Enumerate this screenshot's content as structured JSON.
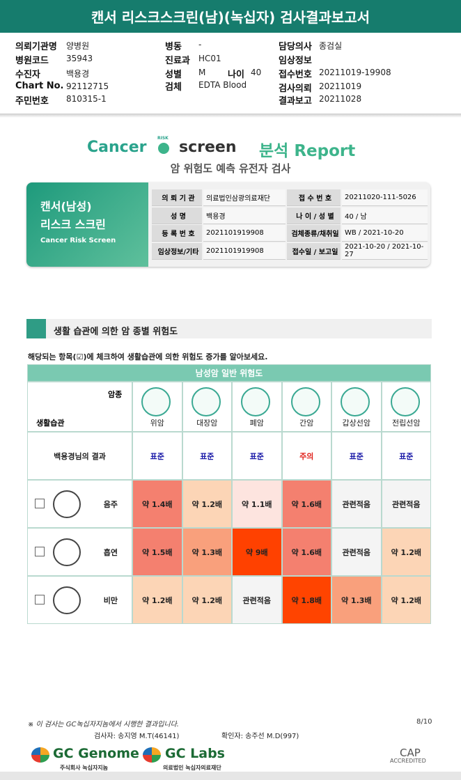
{
  "header": {
    "title": "캔서 리스크스크린(남)(녹십자) 검사결과보고서"
  },
  "info": {
    "columns": [
      [
        {
          "label": "의뢰기관명",
          "value": "양병원"
        },
        {
          "label": "병원코드",
          "value": "35943"
        },
        {
          "label": "수진자",
          "value": "백용경"
        },
        {
          "label": "Chart No.",
          "value": "92112715"
        },
        {
          "label": "주민번호",
          "value": "810315-1"
        }
      ],
      [
        {
          "label": "병동",
          "value": "-"
        },
        {
          "label": "진료과",
          "value": "HC01"
        },
        {
          "label": "성별",
          "value": "M"
        },
        {
          "label": "검체",
          "value": "EDTA Blood"
        }
      ],
      [
        {
          "label": "담당의사",
          "value": "종검실"
        },
        {
          "label": "임상정보"
        },
        {
          "label": "접수번호",
          "value": "20211019-19908"
        },
        {
          "label": "검사의뢰",
          "value": "20211019"
        },
        {
          "label": "결과보고",
          "value": "20211028"
        }
      ]
    ],
    "age": {
      "label": "나이",
      "value": "40"
    }
  },
  "logo": {
    "cancer": "Cancer",
    "risk": "RISK",
    "screen": "screen",
    "report": "분석 Report",
    "subtitle": "암 위험도 예측 유전자 검사"
  },
  "card": {
    "title1": "캔서(남성)",
    "title2": "리스크 스크린",
    "english": "Cancer Risk Screen",
    "rows": [
      [
        "의 뢰 기 관",
        "의료법인삼광의료재단",
        "접 수 번 호",
        "20211020-111-5026"
      ],
      [
        "성 명",
        "백용경",
        "나 이 / 성 별",
        "40 / 남"
      ],
      [
        "등 록 번 호",
        "2021101919908",
        "검체종류/채취일",
        "WB / 2021-10-20"
      ],
      [
        "임상정보/기타",
        "2021101919908",
        "접수일 / 보고일",
        "2021-10-20 / 2021-10-27"
      ]
    ]
  },
  "section": {
    "title": "생활 습관에 의한 암 종별 위험도",
    "instruction": "해당되는 항목(☑)에 체크하여 생활습관에 의한 위험도 증가를 알아보세요."
  },
  "risk_table": {
    "title": "남성암 일반 위험도",
    "corner_top": "암종",
    "corner_bottom": "생활습관",
    "cancers": [
      "위암",
      "대장암",
      "폐암",
      "간암",
      "갑상선암",
      "전립선암"
    ],
    "result_label": "백용경님의 결과",
    "results": [
      {
        "text": "표준",
        "color": "#1a1aa8"
      },
      {
        "text": "표준",
        "color": "#1a1aa8"
      },
      {
        "text": "표준",
        "color": "#1a1aa8"
      },
      {
        "text": "주의",
        "color": "#e0201a"
      },
      {
        "text": "표준",
        "color": "#1a1aa8"
      },
      {
        "text": "표준",
        "color": "#1a1aa8"
      }
    ],
    "habits": [
      {
        "name": "음주",
        "cells": [
          {
            "text": "약 1.4배",
            "color": "#f4806f"
          },
          {
            "text": "약 1.2배",
            "color": "#fcd5b6"
          },
          {
            "text": "약 1.1배",
            "color": "#fde4df"
          },
          {
            "text": "약 1.6배",
            "color": "#f4806f"
          },
          {
            "text": "관련적음",
            "color": "#f4f4f4"
          },
          {
            "text": "관련적음",
            "color": "#f4f4f4"
          }
        ]
      },
      {
        "name": "흡연",
        "cells": [
          {
            "text": "약 1.5배",
            "color": "#f4806f"
          },
          {
            "text": "약 1.3배",
            "color": "#f9a07c"
          },
          {
            "text": "약 9배",
            "color": "#ff4100"
          },
          {
            "text": "약 1.6배",
            "color": "#f4806f"
          },
          {
            "text": "관련적음",
            "color": "#f4f4f4"
          },
          {
            "text": "약 1.2배",
            "color": "#fcd5b6"
          }
        ]
      },
      {
        "name": "비만",
        "cells": [
          {
            "text": "약 1.2배",
            "color": "#fcd5b6"
          },
          {
            "text": "약 1.2배",
            "color": "#fcd5b6"
          },
          {
            "text": "관련적음",
            "color": "#f4f4f4"
          },
          {
            "text": "약 1.8배",
            "color": "#ff4400"
          },
          {
            "text": "약 1.3배",
            "color": "#f9a07c"
          },
          {
            "text": "약 1.2배",
            "color": "#fcd5b6"
          }
        ]
      }
    ]
  },
  "footer": {
    "note": "※ 이 검사는 GC녹십자지놈에서 시행한 결과입니다.",
    "page": "8/10",
    "tester": "검사자: 송지영 M.T(46141)",
    "confirmer": "확인자: 송주선 M.D(997)",
    "logo1": "GC Genome",
    "logo1_sub": "주식회사 녹십자지놈",
    "logo2": "GC Labs",
    "logo2_sub": "의료법인 녹십자의료재단",
    "cap": "CAP",
    "cap_sub": "ACCREDITED"
  }
}
